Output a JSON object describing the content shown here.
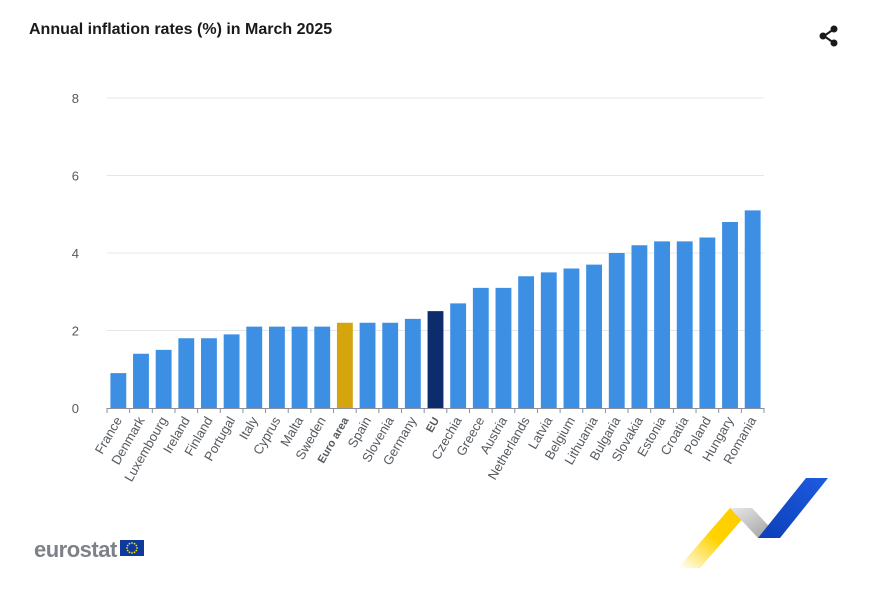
{
  "chart_title": "Annual inflation rates (%) in March 2025",
  "icons": {
    "share": "share-icon",
    "flag": "eu-flag-icon"
  },
  "brand": {
    "logo_text": "eurostat"
  },
  "colors": {
    "bar": "#3d8fe3",
    "euro_area": "#d4a50c",
    "eu": "#0d2c6c",
    "grid": "#e3e7ec",
    "axis_text": "#555a60"
  },
  "chart_data": {
    "type": "bar",
    "title": "Annual inflation rates (%) in March 2025",
    "xlabel": "",
    "ylabel": "",
    "ylim": [
      0,
      8
    ],
    "yticks": [
      0,
      2,
      4,
      6,
      8
    ],
    "grid": true,
    "categories": [
      "France",
      "Denmark",
      "Luxembourg",
      "Ireland",
      "Finland",
      "Portugal",
      "Italy",
      "Cyprus",
      "Malta",
      "Sweden",
      "Euro area",
      "Spain",
      "Slovenia",
      "Germany",
      "EU",
      "Czechia",
      "Greece",
      "Austria",
      "Netherlands",
      "Latvia",
      "Belgium",
      "Lithuania",
      "Bulgaria",
      "Slovakia",
      "Estonia",
      "Croatia",
      "Poland",
      "Hungary",
      "Romania"
    ],
    "values": [
      0.9,
      1.4,
      1.5,
      1.8,
      1.8,
      1.9,
      2.1,
      2.1,
      2.1,
      2.1,
      2.2,
      2.2,
      2.2,
      2.3,
      2.5,
      2.7,
      3.1,
      3.1,
      3.4,
      3.5,
      3.6,
      3.7,
      4.0,
      4.2,
      4.3,
      4.3,
      4.4,
      4.8,
      5.1
    ],
    "highlight": {
      "Euro area": "euro_area",
      "EU": "eu"
    }
  }
}
